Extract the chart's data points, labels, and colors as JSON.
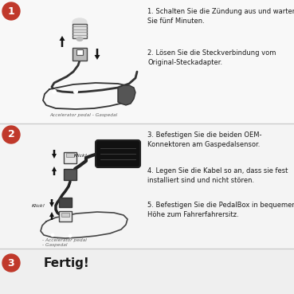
{
  "background_color": "#ffffff",
  "section1_bg": "#f8f8f8",
  "section2_bg": "#f4f4f4",
  "section3_bg": "#efefef",
  "divider_color": "#cccccc",
  "circle_color": "#c0392b",
  "circle_text_color": "#ffffff",
  "step1_number": "1",
  "step2_number": "2",
  "step3_number": "3",
  "step1_text1": "1. Schalten Sie die Zündung aus und warten\nSie fünf Minuten.",
  "step1_text2": "2. Lösen Sie die Steckverbindung vom\nOriginal-Steckadapter.",
  "step1_caption": "Accelerator pedal - Gaspedal",
  "step2_text3": "3. Befestigen Sie die beiden OEM-\nKonnektoren am Gaspedalsensor.",
  "step2_text4": "4. Legen Sie die Kabel so an, dass sie fest\ninstalliert sind und nicht stören.",
  "step2_text5": "5. Befestigen Sie die PedalBox in bequemer\nHöhe zum Fahrerfahrersitz.",
  "step2_caption1": "- Accelerator pedal",
  "step2_caption2": "- Gaspedal",
  "step2_klick1": "Klick!",
  "step2_klick2": "Klick!",
  "step3_text": "Fertig!",
  "figsize": [
    3.69,
    3.69
  ],
  "dpi": 100
}
